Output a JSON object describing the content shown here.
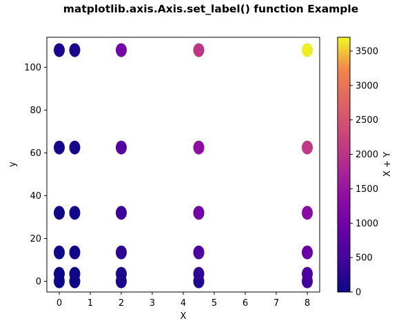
{
  "chart_data": {
    "type": "scatter",
    "title": "matplotlib.axis.Axis.set_label() function Example",
    "xlabel": "X",
    "ylabel": "y",
    "xlim": [
      -0.4,
      8.4
    ],
    "ylim": [
      -5,
      114
    ],
    "x_ticks": [
      0,
      1,
      2,
      3,
      4,
      5,
      6,
      7,
      8
    ],
    "y_ticks": [
      0,
      20,
      40,
      60,
      80,
      100
    ],
    "grid": false,
    "colorbar": {
      "label": "X + Y",
      "colormap": "plasma",
      "range": [
        0,
        3700
      ],
      "ticks": [
        0,
        500,
        1000,
        1500,
        2000,
        2500,
        3000,
        3500
      ]
    },
    "points": [
      {
        "x": 0,
        "y": 0,
        "c": 0
      },
      {
        "x": 0,
        "y": 3.5,
        "c": 4
      },
      {
        "x": 0,
        "y": 13.5,
        "c": 14
      },
      {
        "x": 0,
        "y": 32,
        "c": 32
      },
      {
        "x": 0,
        "y": 62.5,
        "c": 63
      },
      {
        "x": 0,
        "y": 108,
        "c": 108
      },
      {
        "x": 0.5,
        "y": 0,
        "c": 5
      },
      {
        "x": 0.5,
        "y": 3.5,
        "c": 9
      },
      {
        "x": 0.5,
        "y": 13.5,
        "c": 19
      },
      {
        "x": 0.5,
        "y": 32,
        "c": 37
      },
      {
        "x": 0.5,
        "y": 62.5,
        "c": 68
      },
      {
        "x": 0.5,
        "y": 108,
        "c": 113
      },
      {
        "x": 2,
        "y": 0,
        "c": 100
      },
      {
        "x": 2,
        "y": 3.5,
        "c": 150
      },
      {
        "x": 2,
        "y": 13.5,
        "c": 250
      },
      {
        "x": 2,
        "y": 32,
        "c": 420
      },
      {
        "x": 2,
        "y": 62.5,
        "c": 700
      },
      {
        "x": 2,
        "y": 108,
        "c": 1050
      },
      {
        "x": 4.5,
        "y": 0,
        "c": 180
      },
      {
        "x": 4.5,
        "y": 3.5,
        "c": 300
      },
      {
        "x": 4.5,
        "y": 13.5,
        "c": 600
      },
      {
        "x": 4.5,
        "y": 32,
        "c": 1000
      },
      {
        "x": 4.5,
        "y": 62.5,
        "c": 1350
      },
      {
        "x": 4.5,
        "y": 108,
        "c": 2050
      },
      {
        "x": 8,
        "y": 0,
        "c": 450
      },
      {
        "x": 8,
        "y": 3.5,
        "c": 600
      },
      {
        "x": 8,
        "y": 13.5,
        "c": 900
      },
      {
        "x": 8,
        "y": 32,
        "c": 1300
      },
      {
        "x": 8,
        "y": 62.5,
        "c": 2100
      },
      {
        "x": 8,
        "y": 108,
        "c": 3650
      }
    ]
  }
}
